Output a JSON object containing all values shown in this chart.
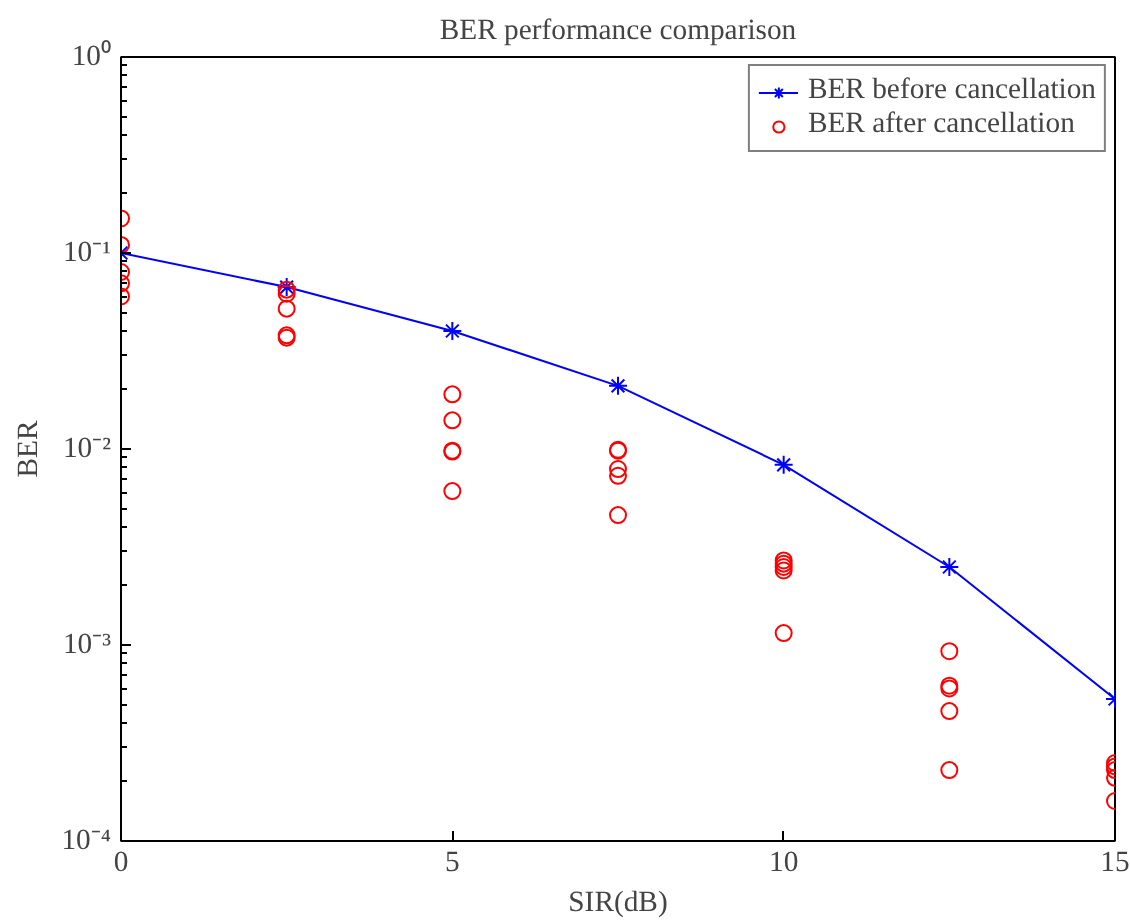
{
  "chart_data": {
    "type": "line",
    "title": "BER performance comparison",
    "xlabel": "SIR(dB)",
    "ylabel": "BER",
    "xlim": [
      0,
      15
    ],
    "xticks": [
      0,
      5,
      10,
      15
    ],
    "ylim": [
      0.0001,
      1
    ],
    "yticks": [
      {
        "value": 0.0001,
        "label": "10⁻⁴"
      },
      {
        "value": 0.001,
        "label": "10⁻³"
      },
      {
        "value": 0.01,
        "label": "10⁻²"
      },
      {
        "value": 0.1,
        "label": "10⁻¹"
      },
      {
        "value": 1,
        "label": "10⁰"
      }
    ],
    "log": "y",
    "grid": false,
    "legend": "top right",
    "series": [
      {
        "name": "BER before cancellation",
        "color": "#0000ff",
        "marker": "cross",
        "line_style": "solid",
        "x": [
          0,
          2.5,
          5,
          7.5,
          10,
          12.5,
          15
        ],
        "values": [
          0.1,
          0.067,
          0.04,
          0.021,
          0.0083,
          0.0025,
          0.00053
        ]
      },
      {
        "name": "BER after cancellation",
        "type": "scatter",
        "color": "#ff0000",
        "marker": "circle",
        "x": [
          0,
          0,
          0,
          0,
          0,
          2.5,
          2.5,
          2.5,
          2.5,
          2.5,
          5,
          5,
          5,
          5,
          5,
          7.5,
          7.5,
          7.5,
          7.5,
          7.5,
          10,
          10,
          10,
          10,
          10,
          12.5,
          12.5,
          12.5,
          12.5,
          12.5,
          15,
          15,
          15,
          15,
          15
        ],
        "values": [
          0.15,
          0.11,
          0.08,
          0.07,
          0.06,
          0.065,
          0.062,
          0.052,
          0.038,
          0.037,
          0.019,
          0.014,
          0.0098,
          0.0097,
          0.0061,
          0.0099,
          0.0098,
          0.0079,
          0.0073,
          0.0046,
          0.0027,
          0.0026,
          0.0025,
          0.0024,
          0.00115,
          0.00093,
          0.00062,
          0.0006,
          0.00046,
          0.00023,
          0.00025,
          0.00024,
          0.00023,
          0.00021,
          0.00016
        ]
      }
    ]
  }
}
